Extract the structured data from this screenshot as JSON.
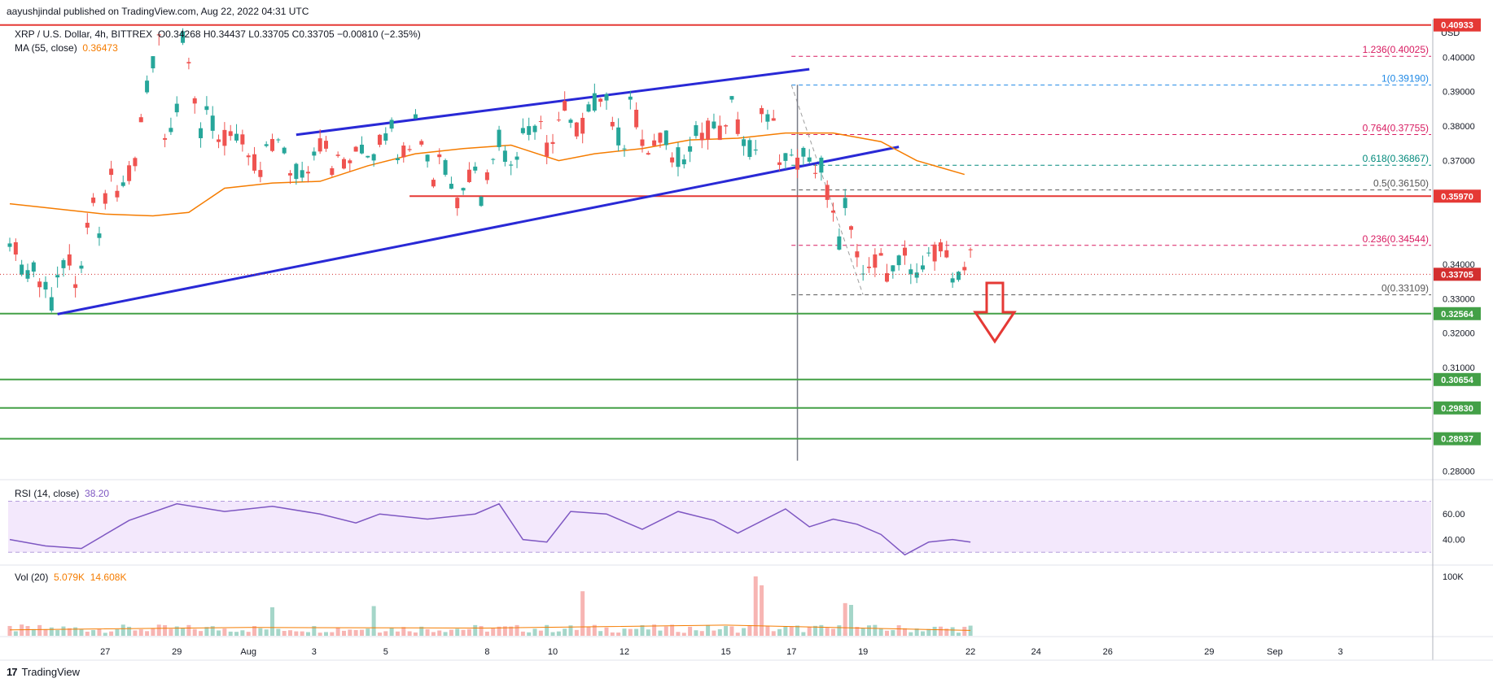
{
  "header": {
    "published_line": "aayushjindal published on TradingView.com, Aug 22, 2022 04:31 UTC",
    "symbol": "XRP / U.S. Dollar, 4h, BITTREX",
    "ohlc": "O0.34268 H0.34437 L0.33705 C0.33705 −0.00810 (−2.35%)",
    "ma_label": "MA (55, close)",
    "ma_value": "0.36473",
    "rsi_label": "RSI (14, close)",
    "rsi_value": "38.20",
    "vol_label": "Vol (20)",
    "vol_value1": "5.079K",
    "vol_value2": "14.608K"
  },
  "footer": {
    "brand": "TradingView",
    "logo_glyph": "17"
  },
  "colors": {
    "up": "#26a69a",
    "down": "#ef5350",
    "ma": "#f57c00",
    "channel": "#2929d6",
    "resistance": "#e53935",
    "support": "#43a047",
    "rsi": "#7e57c2",
    "fib_red": "#d81b60",
    "fib_blue": "#1e88e5",
    "fib_teal": "#00897b",
    "price_tag": "#d32f2f"
  },
  "chart_data": {
    "type": "candlestick",
    "price_axis_unit": "USD",
    "ylim": [
      0.2775,
      0.4095
    ],
    "price_ticks": [
      "0.40000",
      "0.39000",
      "0.38000",
      "0.37000",
      "0.34000",
      "0.33000",
      "0.32000",
      "0.31000",
      "0.28000"
    ],
    "x_tick_labels": [
      "27",
      "29",
      "Aug",
      "3",
      "5",
      "8",
      "10",
      "12",
      "15",
      "17",
      "19",
      "22",
      "24",
      "26",
      "29",
      "Sep",
      "3"
    ],
    "x_tick_index": [
      16,
      28,
      40,
      51,
      63,
      80,
      91,
      103,
      120,
      131,
      143,
      161,
      172,
      184,
      201,
      212,
      223
    ],
    "last_index": 161,
    "current_price": "0.33705",
    "horizontal_levels": [
      {
        "label": "0.40933",
        "price": 0.40933,
        "role": "resistance"
      },
      {
        "label": "0.35970",
        "price": 0.3597,
        "role": "resistance"
      },
      {
        "label": "0.32564",
        "price": 0.32564,
        "role": "support"
      },
      {
        "label": "0.30654",
        "price": 0.30654,
        "role": "support"
      },
      {
        "label": "0.29830",
        "price": 0.2983,
        "role": "support"
      },
      {
        "label": "0.28937",
        "price": 0.28937,
        "role": "support"
      }
    ],
    "fibonacci": [
      {
        "label": "1.236(0.40025)",
        "price": 0.40025,
        "color": "fib_red"
      },
      {
        "label": "1(0.39190)",
        "price": 0.3919,
        "color": "fib_blue"
      },
      {
        "label": "0.764(0.37755)",
        "price": 0.37755,
        "color": "fib_red"
      },
      {
        "label": "0.618(0.36867)",
        "price": 0.36867,
        "color": "fib_teal"
      },
      {
        "label": "0.5(0.36150)",
        "price": 0.3615,
        "color": "dark"
      },
      {
        "label": "0.236(0.34544)",
        "price": 0.34544,
        "color": "fib_red"
      },
      {
        "label": "0(0.33109)",
        "price": 0.33109,
        "color": "dark"
      }
    ],
    "channel": {
      "upper": [
        [
          48,
          0.3775
        ],
        [
          134,
          0.3965
        ]
      ],
      "lower": [
        [
          8,
          0.3255
        ],
        [
          149,
          0.374
        ]
      ]
    },
    "resistance_segment": {
      "from_index": 67,
      "price": 0.3597
    },
    "ma_points": [
      [
        0,
        0.3575
      ],
      [
        8,
        0.356
      ],
      [
        16,
        0.3545
      ],
      [
        24,
        0.354
      ],
      [
        30,
        0.355
      ],
      [
        36,
        0.362
      ],
      [
        44,
        0.3635
      ],
      [
        52,
        0.364
      ],
      [
        60,
        0.3685
      ],
      [
        68,
        0.372
      ],
      [
        76,
        0.3735
      ],
      [
        84,
        0.3745
      ],
      [
        92,
        0.37
      ],
      [
        98,
        0.372
      ],
      [
        106,
        0.3735
      ],
      [
        114,
        0.376
      ],
      [
        122,
        0.3765
      ],
      [
        130,
        0.378
      ],
      [
        138,
        0.378
      ],
      [
        146,
        0.3755
      ],
      [
        152,
        0.37
      ],
      [
        160,
        0.366
      ]
    ],
    "rsi": {
      "ylim": [
        20,
        85
      ],
      "ticks": [
        "60.00",
        "40.00"
      ],
      "band": [
        30,
        70
      ],
      "points": [
        [
          0,
          40
        ],
        [
          6,
          35
        ],
        [
          12,
          33
        ],
        [
          20,
          55
        ],
        [
          28,
          68
        ],
        [
          36,
          62
        ],
        [
          44,
          66
        ],
        [
          52,
          60
        ],
        [
          58,
          53
        ],
        [
          62,
          60
        ],
        [
          70,
          56
        ],
        [
          78,
          60
        ],
        [
          82,
          68
        ],
        [
          86,
          40
        ],
        [
          90,
          38
        ],
        [
          94,
          62
        ],
        [
          100,
          60
        ],
        [
          106,
          48
        ],
        [
          112,
          62
        ],
        [
          118,
          55
        ],
        [
          122,
          45
        ],
        [
          130,
          64
        ],
        [
          134,
          50
        ],
        [
          138,
          56
        ],
        [
          142,
          52
        ],
        [
          146,
          44
        ],
        [
          150,
          28
        ],
        [
          154,
          38
        ],
        [
          158,
          40
        ],
        [
          161,
          38
        ]
      ]
    },
    "volume": {
      "ticks": [
        "100K"
      ],
      "ylim": [
        0,
        115
      ],
      "bars": [
        [
          44,
          48,
          0
        ],
        [
          61,
          50,
          0
        ],
        [
          96,
          75,
          1
        ],
        [
          125,
          100,
          1
        ],
        [
          126,
          85,
          1
        ],
        [
          140,
          55,
          1
        ],
        [
          141,
          52,
          0
        ]
      ]
    },
    "candles_ohlc_seed": [
      [
        0.348,
        0.342
      ],
      [
        0.34,
        0.333
      ],
      [
        0.336,
        0.328
      ],
      [
        0.33,
        0.341
      ],
      [
        0.341,
        0.36
      ],
      [
        0.36,
        0.377
      ],
      [
        0.377,
        0.372
      ],
      [
        0.372,
        0.408
      ],
      [
        0.408,
        0.389
      ],
      [
        0.389,
        0.376
      ],
      [
        0.376,
        0.372
      ],
      [
        0.372,
        0.376
      ],
      [
        0.376,
        0.366
      ],
      [
        0.366,
        0.373
      ],
      [
        0.373,
        0.368
      ],
      [
        0.368,
        0.376
      ],
      [
        0.376,
        0.372
      ],
      [
        0.372,
        0.372
      ],
      [
        0.372,
        0.383
      ],
      [
        0.383,
        0.376
      ],
      [
        0.376,
        0.361
      ],
      [
        0.361,
        0.358
      ],
      [
        0.358,
        0.371
      ],
      [
        0.371,
        0.378
      ],
      [
        0.378,
        0.371
      ],
      [
        0.371,
        0.379
      ],
      [
        0.379,
        0.386
      ],
      [
        0.386,
        0.38
      ],
      [
        0.38,
        0.389
      ],
      [
        0.389,
        0.374
      ],
      [
        0.374,
        0.37
      ],
      [
        0.37,
        0.377
      ],
      [
        0.377,
        0.373
      ],
      [
        0.373,
        0.38
      ],
      [
        0.38,
        0.389
      ],
      [
        0.389,
        0.371
      ],
      [
        0.371,
        0.377
      ],
      [
        0.377,
        0.369
      ],
      [
        0.369,
        0.36
      ],
      [
        0.36,
        0.342
      ],
      [
        0.342,
        0.334
      ],
      [
        0.334,
        0.341
      ],
      [
        0.341,
        0.343
      ],
      [
        0.343,
        0.336
      ],
      [
        0.336,
        0.344
      ],
      [
        0.344,
        0.337
      ]
    ]
  }
}
